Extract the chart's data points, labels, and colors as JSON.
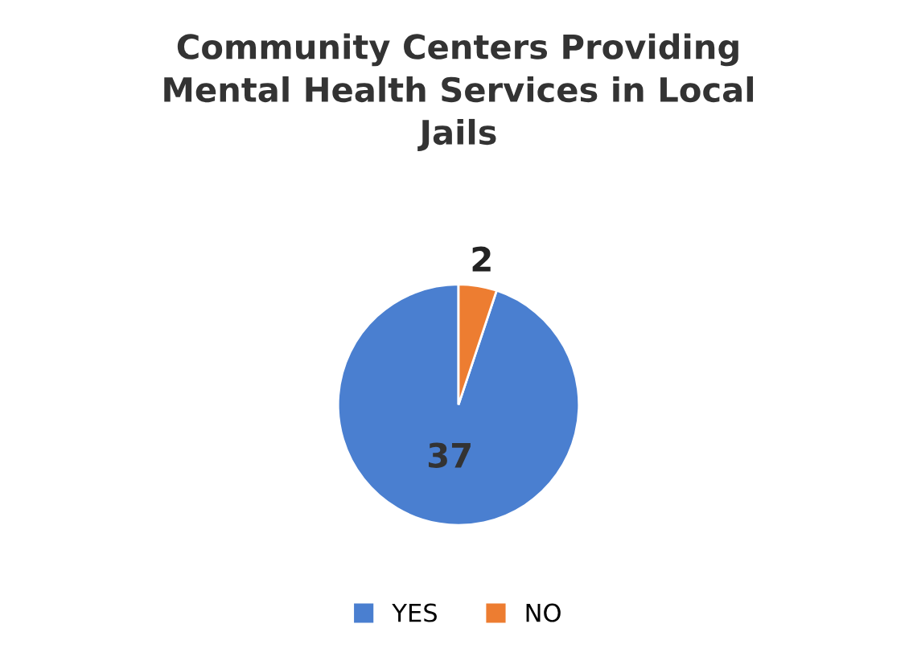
{
  "chart_data": {
    "type": "pie",
    "title": "Community Centers Providing\nMental Health Services in Local\nJails",
    "categories": [
      "YES",
      "NO"
    ],
    "values": [
      37,
      2
    ],
    "colors": [
      "#4a7fd0",
      "#ed7d31"
    ],
    "data_labels": true,
    "legend": "bottom"
  }
}
